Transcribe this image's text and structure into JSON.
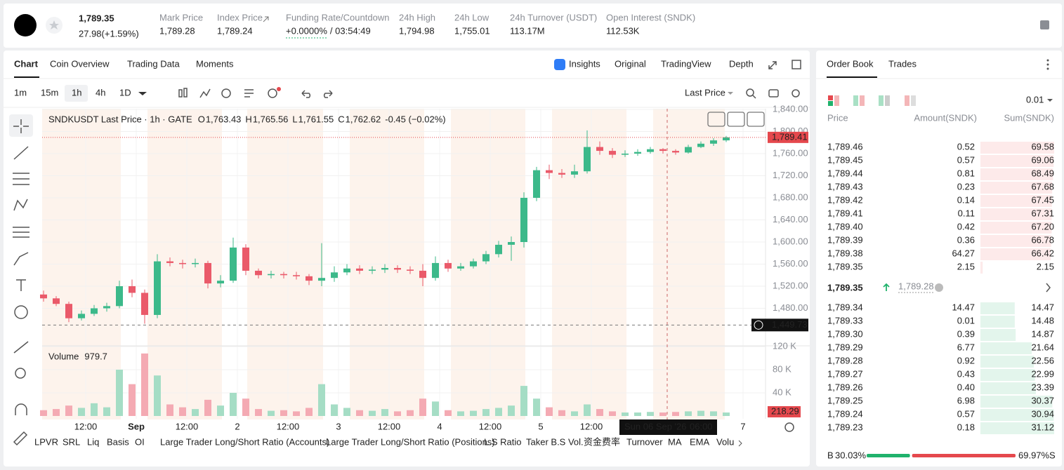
{
  "header": {
    "price": "1,789.35",
    "change": "27.98(+1.59%)",
    "stats": [
      {
        "label": "Mark Price",
        "value": "1,789.28"
      },
      {
        "label": "Index Price",
        "value": "1,789.24"
      },
      {
        "label": "Funding Rate/Countdown",
        "value": "+0.0000%",
        "countdown": "/ 03:54:49"
      },
      {
        "label": "24h High",
        "value": "1,794.98"
      },
      {
        "label": "24h Low",
        "value": "1,755.01"
      },
      {
        "label": "24h Turnover (USDT)",
        "value": "113.17M"
      },
      {
        "label": "Open Interest (SNDK)",
        "value": "112.53K"
      }
    ]
  },
  "tabs": [
    "Chart",
    "Coin Overview",
    "Trading Data",
    "Moments"
  ],
  "view_tabs": [
    "Insights",
    "Original",
    "TradingView",
    "Depth"
  ],
  "intervals": [
    "1m",
    "15m",
    "1h",
    "4h",
    "1D"
  ],
  "price_source": "Last Price",
  "chart": {
    "symbol": "SNDKUSDT Last Price · 1h · GATE",
    "ohlc": [
      {
        "key": "O",
        "value": "1,763.43"
      },
      {
        "key": "H",
        "value": "1,765.56"
      },
      {
        "key": "L",
        "value": "1,761.55"
      },
      {
        "key": "C",
        "value": "1,762.62"
      }
    ],
    "change": "-0.45 (−0.02%)",
    "yticks": [
      {
        "value": 1840,
        "label": "1,840.00"
      },
      {
        "value": 1800,
        "label": "1,800.00"
      },
      {
        "value": 1760,
        "label": "1,760.00"
      },
      {
        "value": 1720,
        "label": "1,720.00"
      },
      {
        "value": 1680,
        "label": "1,680.00"
      },
      {
        "value": 1640,
        "label": "1,640.00"
      },
      {
        "value": 1600,
        "label": "1,600.00"
      },
      {
        "value": 1560,
        "label": "1,560.00"
      },
      {
        "value": 1520,
        "label": "1,520.00"
      },
      {
        "value": 1480,
        "label": "1,480.00"
      }
    ],
    "last_price": {
      "value": 1789.41,
      "label": "1,789.41"
    },
    "crosshair_price": {
      "value": 1449.73,
      "label": "1,449.73"
    },
    "crosshair_date": "Sun 06 Sep '26",
    "crosshair_time": "06:00",
    "time_labels": [
      "12:00",
      "Sep",
      "12:00",
      "2",
      "12:00",
      "3",
      "12:00",
      "4",
      "12:00",
      "5",
      "12:00",
      "7"
    ],
    "candles": [
      [
        1505,
        1512,
        1492,
        1498
      ],
      [
        1498,
        1502,
        1484,
        1488
      ],
      [
        1488,
        1492,
        1455,
        1462
      ],
      [
        1462,
        1476,
        1458,
        1470
      ],
      [
        1470,
        1486,
        1466,
        1480
      ],
      [
        1480,
        1490,
        1474,
        1484
      ],
      [
        1484,
        1530,
        1480,
        1520
      ],
      [
        1520,
        1532,
        1500,
        1508
      ],
      [
        1508,
        1514,
        1452,
        1468
      ],
      [
        1468,
        1578,
        1462,
        1565
      ],
      [
        1565,
        1572,
        1556,
        1562
      ],
      [
        1562,
        1568,
        1552,
        1560
      ],
      [
        1560,
        1570,
        1554,
        1562
      ],
      [
        1562,
        1566,
        1516,
        1525
      ],
      [
        1525,
        1540,
        1518,
        1530
      ],
      [
        1530,
        1608,
        1526,
        1590
      ],
      [
        1590,
        1596,
        1540,
        1548
      ],
      [
        1548,
        1552,
        1534,
        1540
      ],
      [
        1540,
        1548,
        1534,
        1542
      ],
      [
        1542,
        1546,
        1534,
        1540
      ],
      [
        1540,
        1546,
        1532,
        1538
      ],
      [
        1538,
        1542,
        1522,
        1530
      ],
      [
        1530,
        1598,
        1520,
        1535
      ],
      [
        1535,
        1556,
        1528,
        1545
      ],
      [
        1545,
        1560,
        1540,
        1552
      ],
      [
        1552,
        1558,
        1542,
        1548
      ],
      [
        1548,
        1556,
        1542,
        1550
      ],
      [
        1550,
        1560,
        1544,
        1553
      ],
      [
        1553,
        1558,
        1544,
        1550
      ],
      [
        1550,
        1556,
        1542,
        1548
      ],
      [
        1548,
        1560,
        1520,
        1535
      ],
      [
        1535,
        1574,
        1530,
        1562
      ],
      [
        1562,
        1568,
        1546,
        1552
      ],
      [
        1552,
        1562,
        1548,
        1556
      ],
      [
        1556,
        1570,
        1552,
        1565
      ],
      [
        1565,
        1584,
        1560,
        1578
      ],
      [
        1578,
        1602,
        1572,
        1595
      ],
      [
        1595,
        1610,
        1566,
        1600
      ],
      [
        1600,
        1690,
        1590,
        1680
      ],
      [
        1680,
        1736,
        1674,
        1730
      ],
      [
        1730,
        1740,
        1714,
        1725
      ],
      [
        1725,
        1732,
        1716,
        1722
      ],
      [
        1722,
        1740,
        1716,
        1728
      ],
      [
        1728,
        1802,
        1724,
        1772
      ],
      [
        1772,
        1782,
        1758,
        1765
      ],
      [
        1765,
        1770,
        1752,
        1758
      ],
      [
        1758,
        1766,
        1754,
        1760
      ],
      [
        1760,
        1768,
        1756,
        1763
      ],
      [
        1763,
        1772,
        1760,
        1768
      ],
      [
        1768,
        1770,
        1760,
        1765
      ],
      [
        1765,
        1768,
        1758,
        1762
      ],
      [
        1762,
        1776,
        1760,
        1772
      ],
      [
        1772,
        1782,
        1770,
        1778
      ],
      [
        1778,
        1788,
        1774,
        1784
      ],
      [
        1784,
        1792,
        1781,
        1789.41
      ]
    ],
    "volume": {
      "title": "Volume",
      "value": "979.7",
      "last": "218.29",
      "ticks": [
        {
          "value": 120000,
          "label": "120 K"
        },
        {
          "value": 80000,
          "label": "80 K"
        },
        {
          "value": 40000,
          "label": "40 K"
        }
      ],
      "values": [
        10000,
        12000,
        18000,
        14000,
        22000,
        15000,
        80000,
        55000,
        108000,
        70000,
        20000,
        15000,
        12000,
        28000,
        18000,
        40000,
        30000,
        12000,
        9000,
        10000,
        8000,
        14000,
        55000,
        20000,
        14000,
        10000,
        9000,
        12000,
        8000,
        10000,
        30000,
        25000,
        10000,
        8000,
        9000,
        12000,
        14000,
        18000,
        52000,
        30000,
        15000,
        10000,
        8000,
        20000,
        12000,
        8000,
        6000,
        6000,
        7000,
        6000,
        7000,
        8000,
        9000,
        8000,
        6000
      ]
    }
  },
  "indicators": [
    "LPVR",
    "SRL",
    "Liq",
    "Basis",
    "OI",
    "Large Trader Long/Short Ratio (Accounts)",
    "Large Trader Long/Short Ratio (Positions)",
    "L.S Ratio",
    "Taker B.S Vol.",
    "资金费率",
    "Turnover",
    "MA",
    "EMA",
    "Volu"
  ],
  "order_book": {
    "tabs": [
      "Order Book",
      "Trades"
    ],
    "precision": "0.01",
    "columns": [
      "Price",
      "Amount(SNDK)",
      "Sum(SNDK)"
    ],
    "asks": [
      [
        "1,789.46",
        "0.52",
        "69.58"
      ],
      [
        "1,789.45",
        "0.57",
        "69.06"
      ],
      [
        "1,789.44",
        "0.81",
        "68.49"
      ],
      [
        "1,789.43",
        "0.23",
        "67.68"
      ],
      [
        "1,789.42",
        "0.14",
        "67.45"
      ],
      [
        "1,789.41",
        "0.11",
        "67.31"
      ],
      [
        "1,789.40",
        "0.42",
        "67.20"
      ],
      [
        "1,789.39",
        "0.36",
        "66.78"
      ],
      [
        "1,789.38",
        "64.27",
        "66.42"
      ],
      [
        "1,789.35",
        "2.15",
        "2.15"
      ]
    ],
    "mid_price": "1,789.35",
    "mark_price": "1,789.28",
    "bids": [
      [
        "1,789.34",
        "14.47",
        "14.47"
      ],
      [
        "1,789.33",
        "0.01",
        "14.48"
      ],
      [
        "1,789.30",
        "0.39",
        "14.87"
      ],
      [
        "1,789.29",
        "6.77",
        "21.64"
      ],
      [
        "1,789.28",
        "0.92",
        "22.56"
      ],
      [
        "1,789.27",
        "0.43",
        "22.99"
      ],
      [
        "1,789.26",
        "0.40",
        "23.39"
      ],
      [
        "1,789.25",
        "6.98",
        "30.37"
      ],
      [
        "1,789.24",
        "0.57",
        "30.94"
      ],
      [
        "1,789.23",
        "0.18",
        "31.12"
      ]
    ],
    "buy_label": "B",
    "buy": "30.03%",
    "sell": "69.97%",
    "sell_label": "S"
  }
}
